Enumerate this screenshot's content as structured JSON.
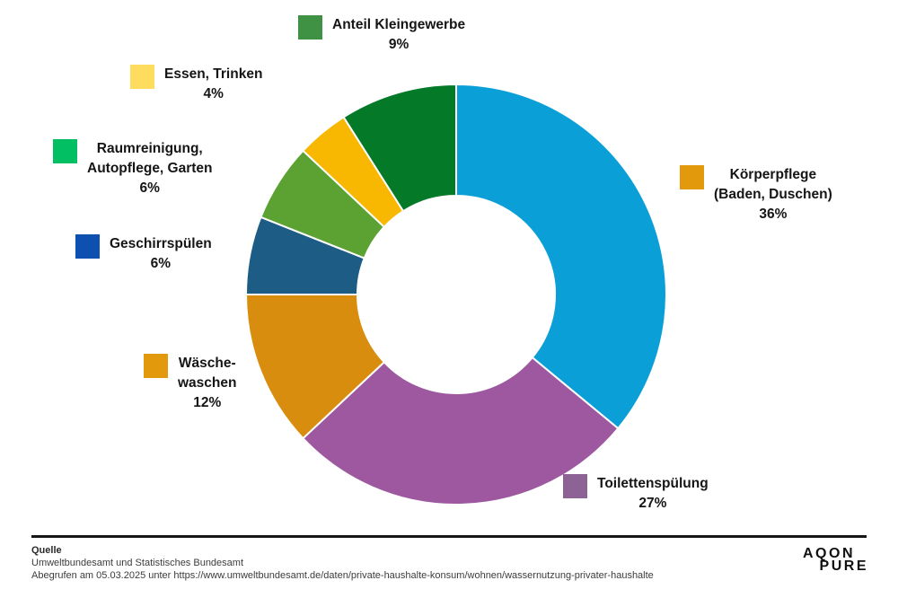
{
  "chart_data": {
    "type": "pie",
    "subtype": "donut",
    "title": "",
    "start_angle_deg": 0,
    "direction": "clockwise",
    "inner_radius_ratio": 0.47,
    "segments": [
      {
        "label": "Körperpflege (Baden, Duschen)",
        "value": 36,
        "color": "#0b9fd8"
      },
      {
        "label": "Toilettenspülung",
        "value": 27,
        "color": "#9d58a0"
      },
      {
        "label": "Wäschewaschen",
        "value": 12,
        "color": "#d98d0e"
      },
      {
        "label": "Geschirrspülen",
        "value": 6,
        "color": "#1d5c84"
      },
      {
        "label": "Raumreinigung, Autopflege, Garten",
        "value": 6,
        "color": "#5ba233"
      },
      {
        "label": "Essen, Trinken",
        "value": 4,
        "color": "#f8b700"
      },
      {
        "label": "Anteil Kleingewerbe",
        "value": 9,
        "color": "#047a29"
      }
    ]
  },
  "legend": {
    "items": [
      {
        "color": "#3f9143",
        "lines": [
          "Anteil Kleingewerbe",
          "9%"
        ]
      },
      {
        "color": "#fedd5e",
        "lines": [
          "Essen, Trinken",
          "4%"
        ]
      },
      {
        "color": "#02bf63",
        "lines": [
          "Raumreinigung,",
          "Autopflege, Garten",
          "6%"
        ]
      },
      {
        "color": "#0d50b0",
        "lines": [
          "Geschirrspülen",
          "6%"
        ]
      },
      {
        "color": "#e29a0c",
        "lines": [
          "Wäsche-",
          "waschen",
          "12%"
        ]
      },
      {
        "color": "#e29a0c",
        "lines": [
          "Körperpflege",
          "(Baden, Duschen)",
          "36%"
        ]
      },
      {
        "color": "#8d6295",
        "lines": [
          "Toilettenspülung",
          "27%"
        ]
      }
    ]
  },
  "footer": {
    "source_heading": "Quelle",
    "source_line1": "Umweltbundesamt und Statistisches Bundesamt",
    "source_line2": "Abegrufen am 05.03.2025 unter https://www.umweltbundesamt.de/daten/private-haushalte-konsum/wohnen/wassernutzung-privater-haushalte",
    "logo_line1": "AQON",
    "logo_line2": "PURE"
  }
}
